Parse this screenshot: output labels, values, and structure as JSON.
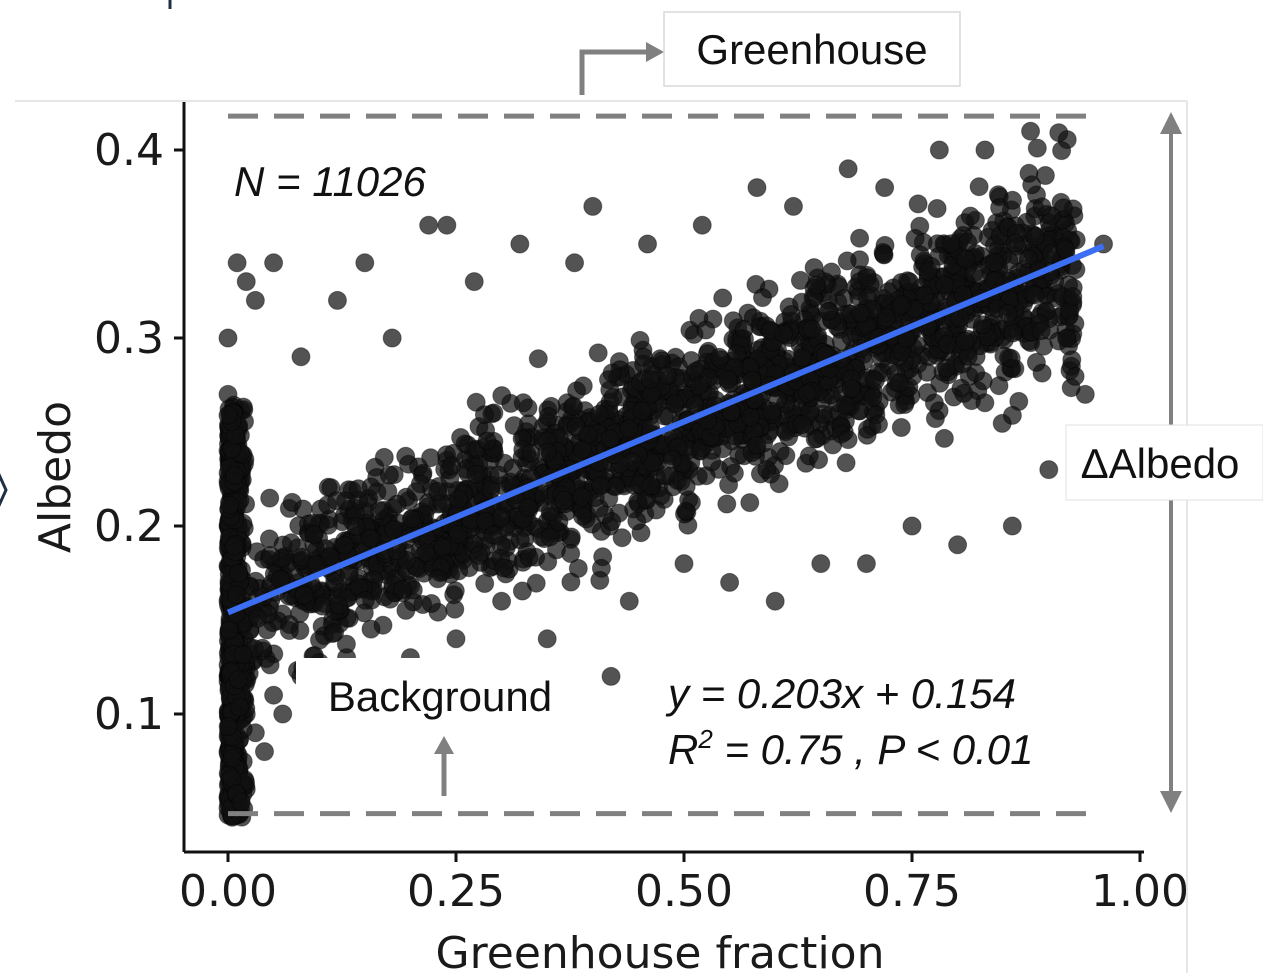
{
  "chart_data": {
    "type": "scatter",
    "title": "",
    "xlabel": "Greenhouse fraction",
    "ylabel": "Albedo",
    "xlim": [
      -0.05,
      1.0
    ],
    "ylim": [
      0.03,
      0.43
    ],
    "x_ticks": [
      "0.00",
      "0.25",
      "0.50",
      "0.75",
      "1.00"
    ],
    "y_ticks": [
      "0.1",
      "0.2",
      "0.3",
      "0.4"
    ],
    "grid": false,
    "n_label": "N = 11026",
    "n_points": 11026,
    "points": [
      [
        0.0,
        0.05
      ],
      [
        0.0,
        0.08
      ],
      [
        0.0,
        0.12
      ],
      [
        0.0,
        0.16
      ],
      [
        0.0,
        0.2
      ],
      [
        0.0,
        0.24
      ],
      [
        0.0,
        0.27
      ],
      [
        0.0,
        0.3
      ],
      [
        0.01,
        0.07
      ],
      [
        0.01,
        0.14
      ],
      [
        0.01,
        0.22
      ],
      [
        0.01,
        0.34
      ],
      [
        0.02,
        0.06
      ],
      [
        0.02,
        0.1
      ],
      [
        0.02,
        0.33
      ],
      [
        0.03,
        0.09
      ],
      [
        0.03,
        0.32
      ],
      [
        0.04,
        0.08
      ],
      [
        0.05,
        0.34
      ],
      [
        0.05,
        0.11
      ],
      [
        0.06,
        0.1
      ],
      [
        0.08,
        0.29
      ],
      [
        0.08,
        0.12
      ],
      [
        0.1,
        0.11
      ],
      [
        0.12,
        0.32
      ],
      [
        0.13,
        0.13
      ],
      [
        0.15,
        0.34
      ],
      [
        0.18,
        0.3
      ],
      [
        0.2,
        0.13
      ],
      [
        0.22,
        0.36
      ],
      [
        0.24,
        0.36
      ],
      [
        0.25,
        0.14
      ],
      [
        0.27,
        0.33
      ],
      [
        0.3,
        0.16
      ],
      [
        0.32,
        0.35
      ],
      [
        0.35,
        0.14
      ],
      [
        0.38,
        0.34
      ],
      [
        0.4,
        0.37
      ],
      [
        0.42,
        0.12
      ],
      [
        0.44,
        0.16
      ],
      [
        0.46,
        0.35
      ],
      [
        0.5,
        0.18
      ],
      [
        0.52,
        0.36
      ],
      [
        0.55,
        0.17
      ],
      [
        0.58,
        0.38
      ],
      [
        0.6,
        0.16
      ],
      [
        0.62,
        0.37
      ],
      [
        0.65,
        0.18
      ],
      [
        0.68,
        0.39
      ],
      [
        0.7,
        0.18
      ],
      [
        0.72,
        0.38
      ],
      [
        0.75,
        0.2
      ],
      [
        0.78,
        0.4
      ],
      [
        0.8,
        0.19
      ],
      [
        0.83,
        0.4
      ],
      [
        0.86,
        0.2
      ],
      [
        0.88,
        0.41
      ],
      [
        0.9,
        0.23
      ],
      [
        0.92,
        0.3
      ],
      [
        0.94,
        0.27
      ],
      [
        0.96,
        0.35
      ]
    ],
    "fit_line": {
      "slope": 0.203,
      "intercept": 0.154,
      "x_range": [
        0.0,
        0.96
      ],
      "color": "#3b6ef2"
    },
    "point_color": "#111111",
    "equation_label": {
      "prefix": "y = 0.203x + 0.154",
      "r_base": "R",
      "r_sup": "2",
      "r_rest": " = 0.75 , P < 0.01"
    },
    "annotations": {
      "greenhouse": "Greenhouse",
      "background": "Background",
      "delta": "ΔAlbedo"
    },
    "greenhouse_level": 0.418,
    "background_level": 0.047,
    "annotation_color": "#808080"
  }
}
